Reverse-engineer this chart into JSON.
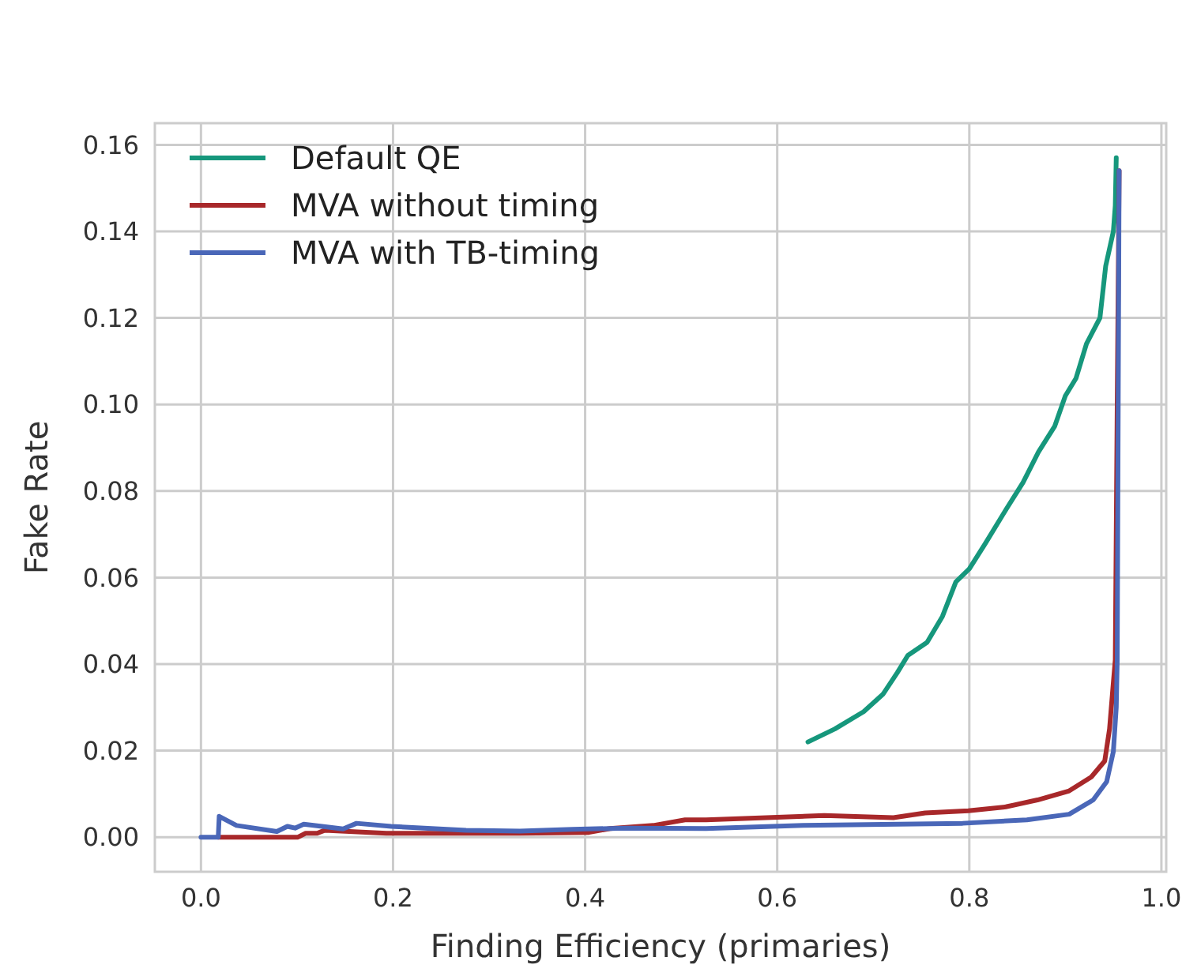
{
  "chart_data": {
    "type": "line",
    "xlabel": "Finding Efficiency (primaries)",
    "ylabel": "Fake Rate",
    "xlim": [
      -0.048,
      1.005
    ],
    "ylim": [
      -0.008,
      0.165
    ],
    "xticks": [
      {
        "value": 0,
        "label": "0.0"
      },
      {
        "value": 0.2,
        "label": "0.2"
      },
      {
        "value": 0.4,
        "label": "0.4"
      },
      {
        "value": 0.6,
        "label": "0.6"
      },
      {
        "value": 0.8,
        "label": "0.8"
      },
      {
        "value": 1,
        "label": "1.0"
      }
    ],
    "yticks": [
      {
        "value": 0,
        "label": "0.00"
      },
      {
        "value": 0.02,
        "label": "0.02"
      },
      {
        "value": 0.04,
        "label": "0.04"
      },
      {
        "value": 0.06,
        "label": "0.06"
      },
      {
        "value": 0.08,
        "label": "0.08"
      },
      {
        "value": 0.1,
        "label": "0.10"
      },
      {
        "value": 0.12,
        "label": "0.12"
      },
      {
        "value": 0.14,
        "label": "0.14"
      },
      {
        "value": 0.16,
        "label": "0.16"
      }
    ],
    "grid": true,
    "legend": "top left",
    "marker": "none",
    "line_style": "solid",
    "series": [
      {
        "name": "Default QE",
        "color": "#16977c",
        "x": [
          0.632,
          0.66,
          0.69,
          0.71,
          0.725,
          0.736,
          0.756,
          0.772,
          0.786,
          0.8,
          0.817,
          0.839,
          0.856,
          0.872,
          0.889,
          0.9,
          0.911,
          0.922,
          0.936,
          0.942,
          0.95,
          0.952,
          0.953
        ],
        "values": [
          0.022,
          0.025,
          0.029,
          0.033,
          0.038,
          0.042,
          0.045,
          0.051,
          0.059,
          0.062,
          0.068,
          0.076,
          0.082,
          0.089,
          0.095,
          0.102,
          0.106,
          0.114,
          0.12,
          0.132,
          0.14,
          0.146,
          0.157
        ]
      },
      {
        "name": "MVA without timing",
        "color": "#a8282a",
        "x": [
          0.018,
          0.101,
          0.109,
          0.121,
          0.129,
          0.193,
          0.254,
          0.332,
          0.404,
          0.426,
          0.471,
          0.504,
          0.526,
          0.649,
          0.721,
          0.754,
          0.799,
          0.838,
          0.871,
          0.904,
          0.927,
          0.941,
          0.946,
          0.95,
          0.952,
          0.954,
          0.956
        ],
        "values": [
          0,
          0,
          0.0009,
          0.0009,
          0.0016,
          0.0009,
          0.0009,
          0.0009,
          0.0011,
          0.002,
          0.0027,
          0.004,
          0.004,
          0.005,
          0.0045,
          0.0056,
          0.0061,
          0.007,
          0.0086,
          0.0107,
          0.0139,
          0.0176,
          0.025,
          0.0358,
          0.041,
          0.1,
          0.154
        ]
      },
      {
        "name": "MVA with TB-timing",
        "color": "#4a67b8",
        "x": [
          0,
          0.018,
          0.019,
          0.037,
          0.079,
          0.09,
          0.098,
          0.107,
          0.126,
          0.148,
          0.162,
          0.198,
          0.276,
          0.332,
          0.387,
          0.443,
          0.526,
          0.627,
          0.793,
          0.86,
          0.904,
          0.929,
          0.943,
          0.95,
          0.953,
          0.954,
          0.956
        ],
        "values": [
          0,
          0,
          0.0048,
          0.0027,
          0.0013,
          0.0025,
          0.0021,
          0.003,
          0.0025,
          0.0019,
          0.0032,
          0.0025,
          0.0016,
          0.0014,
          0.0018,
          0.0021,
          0.002,
          0.0027,
          0.0032,
          0.004,
          0.0053,
          0.0086,
          0.0128,
          0.0198,
          0.03,
          0.041,
          0.154
        ]
      }
    ]
  }
}
